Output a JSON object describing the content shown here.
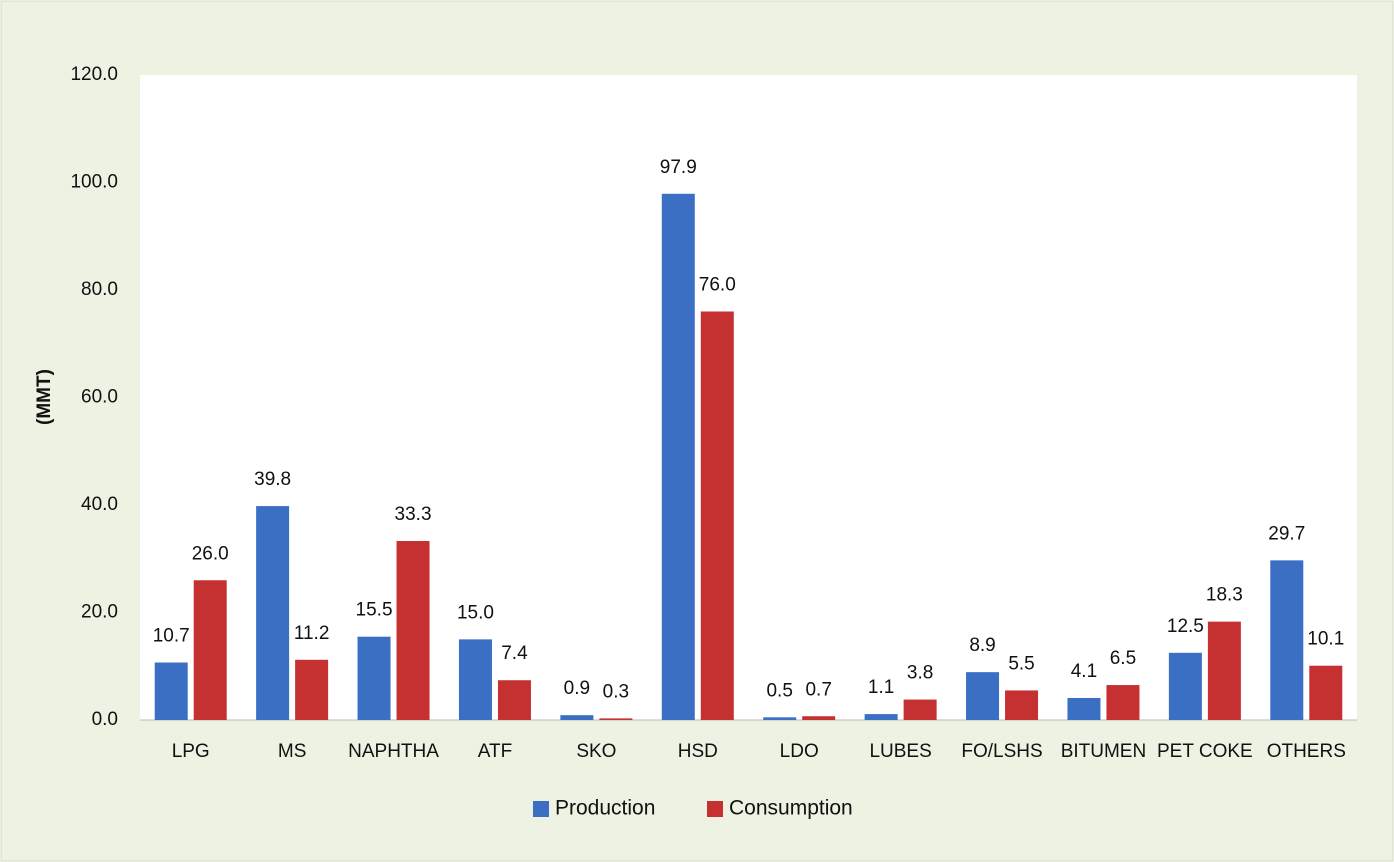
{
  "chart_data": {
    "type": "bar",
    "y_label": "(MMT)",
    "categories": [
      "LPG",
      "MS",
      "NAPHTHA",
      "ATF",
      "SKO",
      "HSD",
      "LDO",
      "LUBES",
      "FO/LSHS",
      "BITUMEN",
      "PET COKE",
      "OTHERS"
    ],
    "series": [
      {
        "name": "Production",
        "color": "#3a6fc4",
        "values": [
          10.7,
          39.8,
          15.5,
          15.0,
          0.9,
          97.9,
          0.5,
          1.1,
          8.9,
          4.1,
          12.5,
          29.7
        ],
        "value_labels": [
          "10.7",
          "39.8",
          "15.5",
          "15.0",
          "0.9",
          "97.9",
          "0.5",
          "1.1",
          "8.9",
          "4.1",
          "12.5",
          "29.7"
        ]
      },
      {
        "name": "Consumption",
        "color": "#c53030",
        "values": [
          26.0,
          11.2,
          33.3,
          7.4,
          0.3,
          76.0,
          0.7,
          3.8,
          5.5,
          6.5,
          18.3,
          10.1
        ],
        "value_labels": [
          "26.0",
          "11.2",
          "33.3",
          "7.4",
          "0.3",
          "76.0",
          "0.7",
          "3.8",
          "5.5",
          "6.5",
          "18.3",
          "10.1"
        ]
      }
    ],
    "ylim": [
      0,
      120
    ],
    "yticks": [
      {
        "value": 0,
        "label": "0.0"
      },
      {
        "value": 20,
        "label": "20.0"
      },
      {
        "value": 40,
        "label": "40.0"
      },
      {
        "value": 60,
        "label": "60.0"
      },
      {
        "value": 80,
        "label": "80.0"
      },
      {
        "value": 100,
        "label": "100.0"
      },
      {
        "value": 120,
        "label": "120.0"
      }
    ],
    "grid": false
  }
}
